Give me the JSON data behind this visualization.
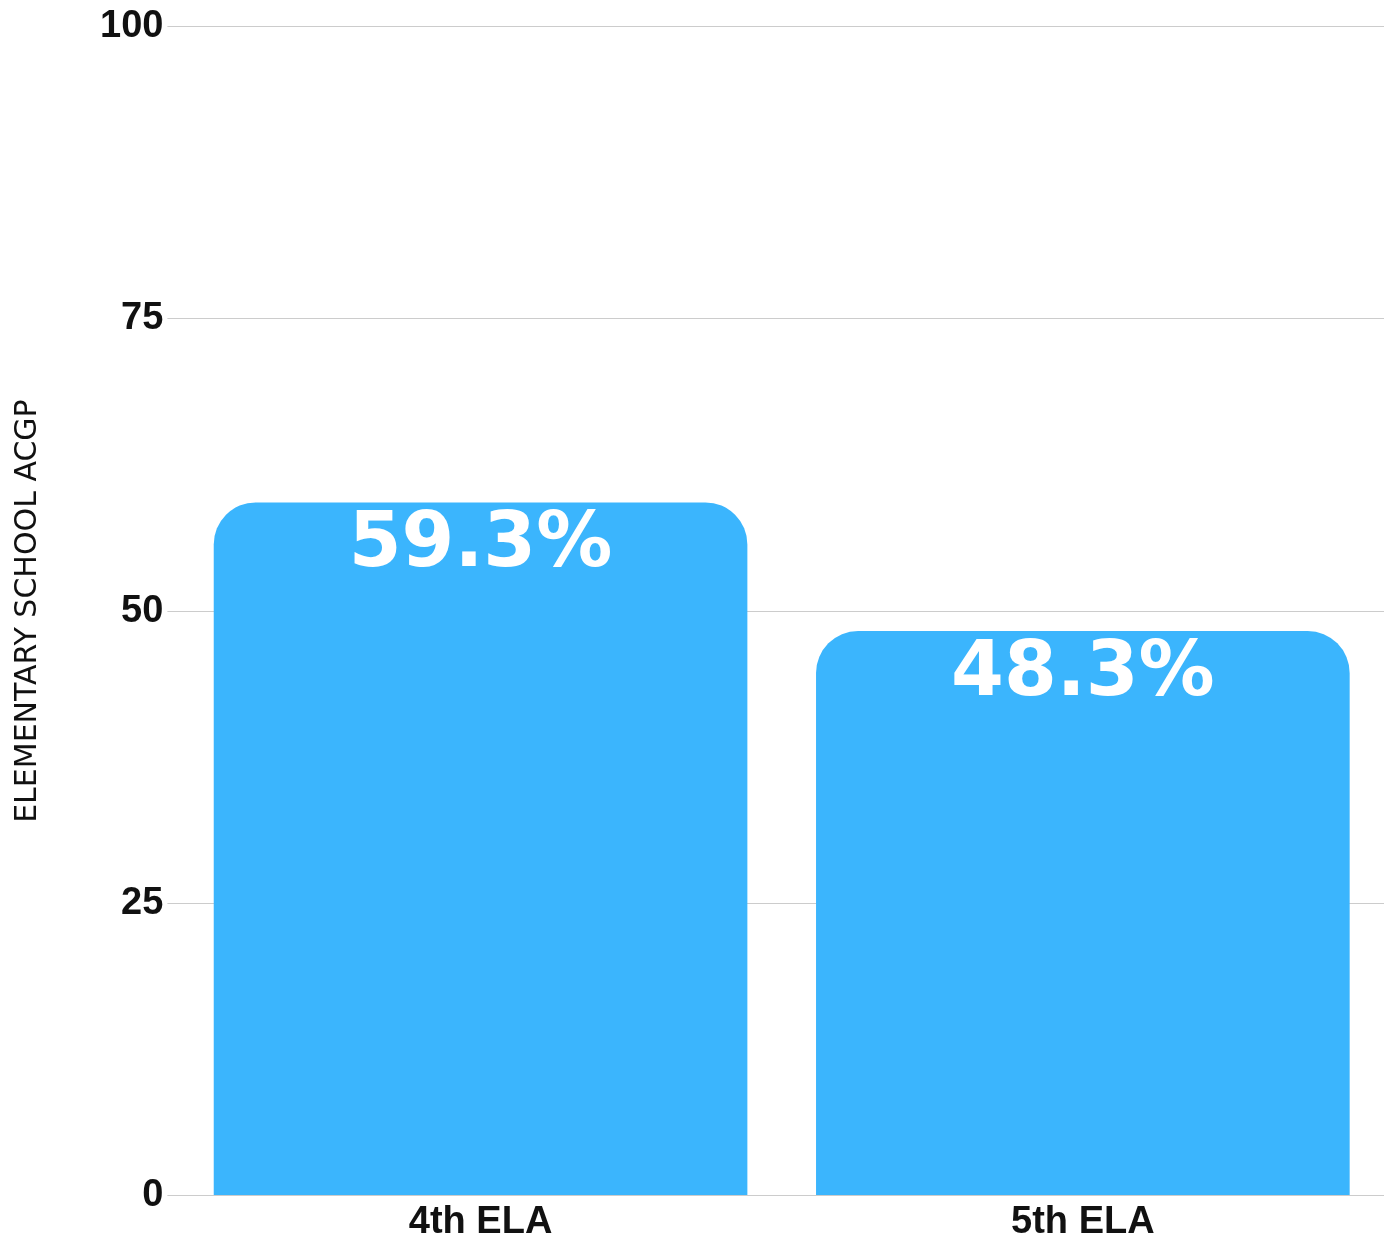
{
  "chart_data": {
    "type": "bar",
    "ylabel": "ELEMENTARY SCHOOL ACGP",
    "categories": [
      "4th ELA",
      "5th ELA"
    ],
    "values": [
      59.3,
      48.3
    ],
    "value_labels": [
      "59.3%",
      "48.3%"
    ],
    "color": "#3bb5fd",
    "ylim": [
      0,
      100
    ],
    "yticks": [
      0,
      25,
      50,
      75,
      100
    ],
    "grid": "y",
    "legend": false
  }
}
